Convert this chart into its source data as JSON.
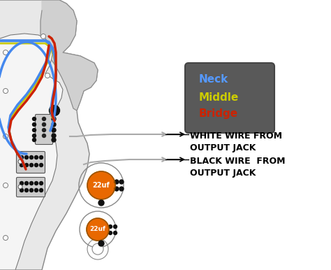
{
  "background_color": "#ffffff",
  "legend_box_color": "#595959",
  "legend_items": [
    {
      "label": "Neck",
      "color": "#5599ff"
    },
    {
      "label": "Middle",
      "color": "#cccc00"
    },
    {
      "label": "Bridge",
      "color": "#cc2200"
    }
  ],
  "annotation1_text": "WHITE WIRE FROM\nOUTPUT JACK",
  "annotation2_text": "BLACK WIRE  FROM\nOUTPUT JACK",
  "cap_color": "#e86800",
  "cap_text_color": "#ffffff",
  "cap_label": "22uf",
  "wire_blue": "#4488ee",
  "wire_yellow": "#cccc00",
  "wire_red": "#cc2200",
  "wire_gray": "#aaaaaa",
  "body_color": "#e8e8e8",
  "body_edge": "#888888",
  "guard_color": "#f5f5f5",
  "guard_edge": "#777777",
  "dot_color": "#111111",
  "annotation_fontsize": 9,
  "legend_fontsize": 11,
  "fig_w": 4.74,
  "fig_h": 3.86,
  "dpi": 100
}
